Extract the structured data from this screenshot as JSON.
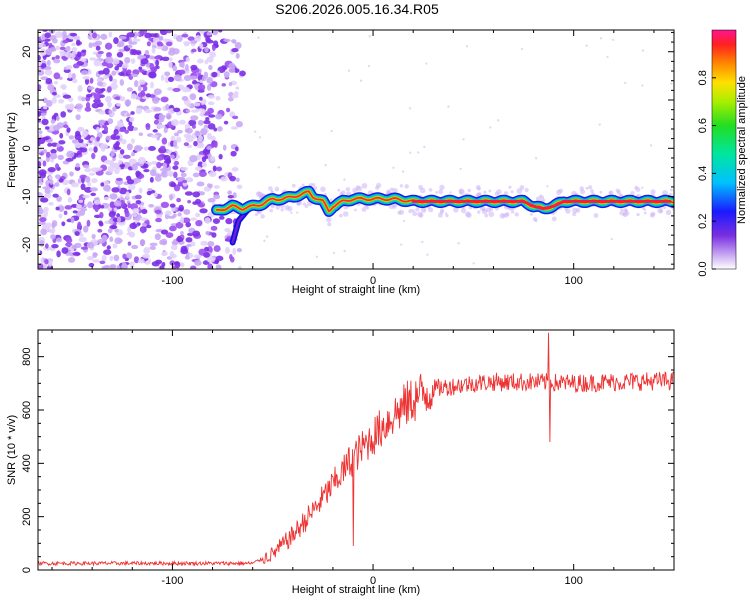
{
  "title": "S206.2026.005.16.34.R05",
  "chart_data": [
    {
      "type": "heatmap",
      "xlabel": "Height of straight line (km)",
      "ylabel": "Frequency (Hz)",
      "xlim": [
        -167,
        150
      ],
      "ylim": [
        -25,
        24.5
      ],
      "xticks": [
        -100,
        0,
        100
      ],
      "xtick_labels": [
        "-100",
        "0",
        "100"
      ],
      "yticks": [
        -20,
        -10,
        0,
        10,
        20
      ],
      "ytick_labels": [
        "-20",
        "-10",
        "0",
        "10",
        "20"
      ],
      "noise_region": {
        "x_from": -167,
        "x_to": -65,
        "y_from": -25,
        "y_to": 24.5
      },
      "ridge": {
        "x": [
          -78,
          -70,
          -65,
          -60,
          -55,
          -50,
          -45,
          -40,
          -35,
          -32,
          -30,
          -25,
          -22,
          -20,
          -15,
          -10,
          -5,
          0,
          10,
          20,
          30,
          50,
          60,
          70,
          75,
          80,
          85,
          90,
          95,
          100,
          120,
          140,
          150
        ],
        "freq": [
          -13,
          -12,
          -12.5,
          -12,
          -11.5,
          -10.5,
          -10.5,
          -10,
          -9.5,
          -9,
          -10,
          -11,
          -13,
          -12,
          -11,
          -10.5,
          -10.5,
          -10.5,
          -10.5,
          -11,
          -11,
          -11,
          -11,
          -11,
          -11,
          -12,
          -12.5,
          -12,
          -11,
          -11,
          -11,
          -11,
          -11
        ]
      },
      "colorbar": {
        "label": "Normalized spectral amplitude",
        "range": [
          0,
          1
        ],
        "ticks": [
          0.0,
          0.2,
          0.4,
          0.6,
          0.8
        ],
        "tick_labels": [
          "0.0",
          "0.2",
          "0.4",
          "0.6",
          "0.8"
        ]
      }
    },
    {
      "type": "line",
      "xlabel": "Height of straight line (km)",
      "ylabel": "SNR (10 * v/v)",
      "xlim": [
        -167,
        150
      ],
      "ylim": [
        0,
        900
      ],
      "xticks": [
        -100,
        0,
        100
      ],
      "xtick_labels": [
        "-100",
        "0",
        "100"
      ],
      "yticks": [
        0,
        200,
        400,
        600,
        800
      ],
      "ytick_labels": [
        "0",
        "200",
        "400",
        "600",
        "800"
      ],
      "series": [
        {
          "name": "SNR",
          "color": "#ee3333",
          "envelope_x": [
            -167,
            -100,
            -60,
            -50,
            -40,
            -30,
            -20,
            -10,
            0,
            10,
            20,
            30,
            40,
            50,
            60,
            80,
            100,
            120,
            150
          ],
          "envelope_y": [
            25,
            25,
            25,
            60,
            130,
            220,
            320,
            420,
            500,
            580,
            640,
            680,
            690,
            700,
            705,
            705,
            700,
            705,
            710
          ],
          "spikes": [
            {
              "x": 87.5,
              "y": 890
            },
            {
              "x": 88,
              "y": 480
            },
            {
              "x": -12,
              "y": 460
            },
            {
              "x": -10,
              "y": 90
            }
          ]
        }
      ]
    }
  ],
  "colors": {
    "line": "#ee3333",
    "noise": "#8a2be2",
    "background": "#ffffff"
  }
}
